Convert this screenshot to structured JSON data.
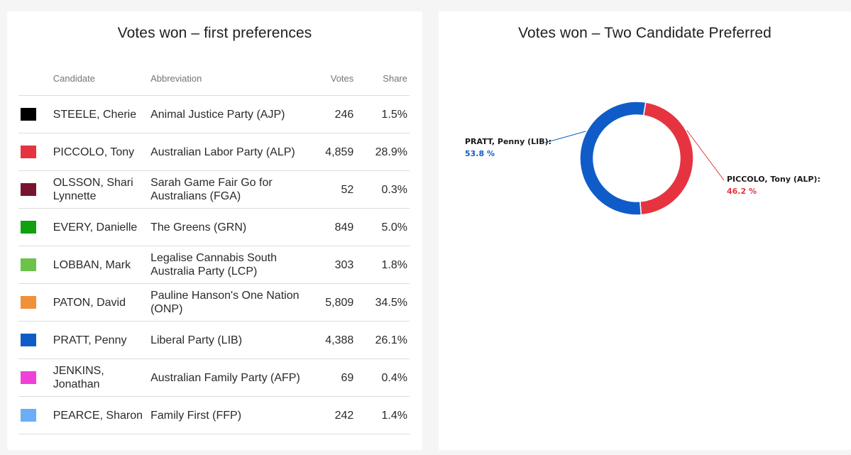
{
  "left_card": {
    "title": "Votes won – first preferences",
    "headers": {
      "candidate": "Candidate",
      "abbreviation": "Abbreviation",
      "votes": "Votes",
      "share": "Share"
    },
    "rows": [
      {
        "candidate": "STEELE, Cherie",
        "abbreviation": "Animal Justice Party (AJP)",
        "votes": "246",
        "share": "1.5%",
        "color": "#000000"
      },
      {
        "candidate": "PICCOLO, Tony",
        "abbreviation": "Australian Labor Party (ALP)",
        "votes": "4,859",
        "share": "28.9%",
        "color": "#e53440"
      },
      {
        "candidate": "OLSSON, Shari Lynnette",
        "abbreviation": "Sarah Game Fair Go for Australians (FGA)",
        "votes": "52",
        "share": "0.3%",
        "color": "#78142d"
      },
      {
        "candidate": "EVERY, Danielle",
        "abbreviation": "The Greens (GRN)",
        "votes": "849",
        "share": "5.0%",
        "color": "#10a010"
      },
      {
        "candidate": "LOBBAN, Mark",
        "abbreviation": "Legalise Cannabis South Australia Party (LCP)",
        "votes": "303",
        "share": "1.8%",
        "color": "#6cc24a"
      },
      {
        "candidate": "PATON, David",
        "abbreviation": "Pauline Hanson's One Nation (ONP)",
        "votes": "5,809",
        "share": "34.5%",
        "color": "#f0913a"
      },
      {
        "candidate": "PRATT, Penny",
        "abbreviation": "Liberal Party (LIB)",
        "votes": "4,388",
        "share": "26.1%",
        "color": "#0f5cc8"
      },
      {
        "candidate": "JENKINS, Jonathan",
        "abbreviation": "Australian Family Party (AFP)",
        "votes": "69",
        "share": "0.4%",
        "color": "#f040d8"
      },
      {
        "candidate": "PEARCE, Sharon",
        "abbreviation": "Family First (FFP)",
        "votes": "242",
        "share": "1.4%",
        "color": "#6aaef8"
      }
    ]
  },
  "chart_data": {
    "type": "pie",
    "title": "Votes won – Two Candidate Preferred",
    "donut": true,
    "slices": [
      {
        "label": "PICCOLO, Tony (ALP):",
        "value": 46.2,
        "display": "46.2 %",
        "color": "#e53440"
      },
      {
        "label": "PRATT, Penny (LIB):",
        "value": 53.8,
        "display": "53.8 %",
        "color": "#0f5cc8"
      }
    ]
  }
}
